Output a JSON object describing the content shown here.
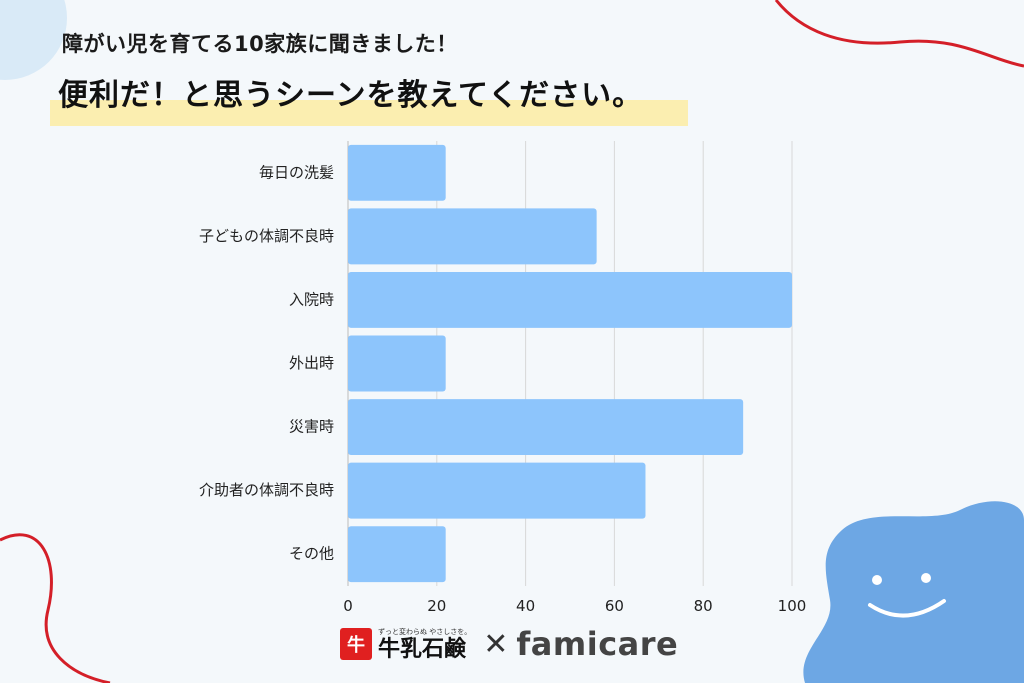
{
  "header": {
    "subtitle": "障がい児を育てる10家族に聞きました！",
    "title": "便利だ！と思うシーンを教えてください。"
  },
  "colors": {
    "background": "#f4f8fb",
    "bar": "#8dc5fc",
    "highlight": "#fbeeb0",
    "accent_red": "#d41f28",
    "mascot": "#6da7e4",
    "grid": "#d8d8d8"
  },
  "chart_data": {
    "type": "bar",
    "orientation": "horizontal",
    "categories": [
      "毎日の洗髪",
      "子どもの体調不良時",
      "入院時",
      "外出時",
      "災害時",
      "介助者の体調不良時",
      "その他"
    ],
    "values": [
      22,
      56,
      100,
      22,
      89,
      67,
      22
    ],
    "xlim": [
      0,
      100
    ],
    "xticks": [
      0,
      20,
      40,
      60,
      80,
      100
    ],
    "grid": true,
    "title": "",
    "xlabel": "",
    "ylabel": ""
  },
  "footer": {
    "brand_mark": "牛",
    "brand_tagline": "ずっと変わらぬ やさしさを。",
    "brand_name": "牛乳石鹸",
    "separator": "✕",
    "partner_name": "famicare"
  }
}
